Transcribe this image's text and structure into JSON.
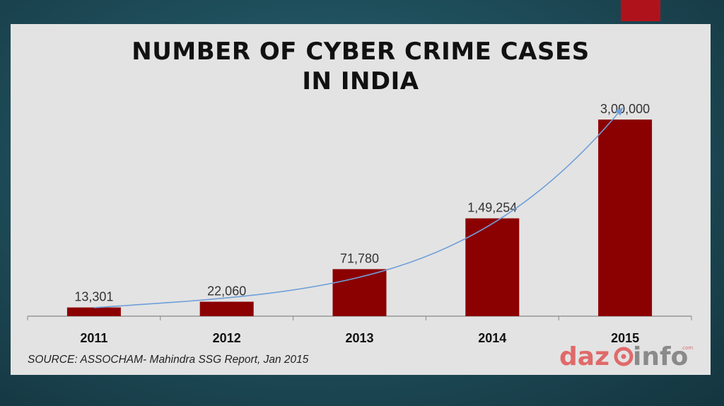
{
  "title_line1": "NUMBER OF CYBER CRIME CASES",
  "title_line2": "IN INDIA",
  "source": "SOURCE: ASSOCHAM- Mahindra SSG Report, Jan 2015",
  "logo": "dazeinfo",
  "colors": {
    "bar": "#8b0000",
    "trend": "#6f9fd8",
    "accent": "#b0121b"
  },
  "chart_data": {
    "type": "bar",
    "categories": [
      "2011",
      "2012",
      "2013",
      "2014",
      "2015"
    ],
    "values": [
      13301,
      22060,
      71780,
      149254,
      300000
    ],
    "value_labels": [
      "13,301",
      "22,060",
      "71,780",
      "1,49,254",
      "3,00,000"
    ],
    "ylim": [
      0,
      300000
    ],
    "grid": false,
    "trend_arrow": true
  }
}
